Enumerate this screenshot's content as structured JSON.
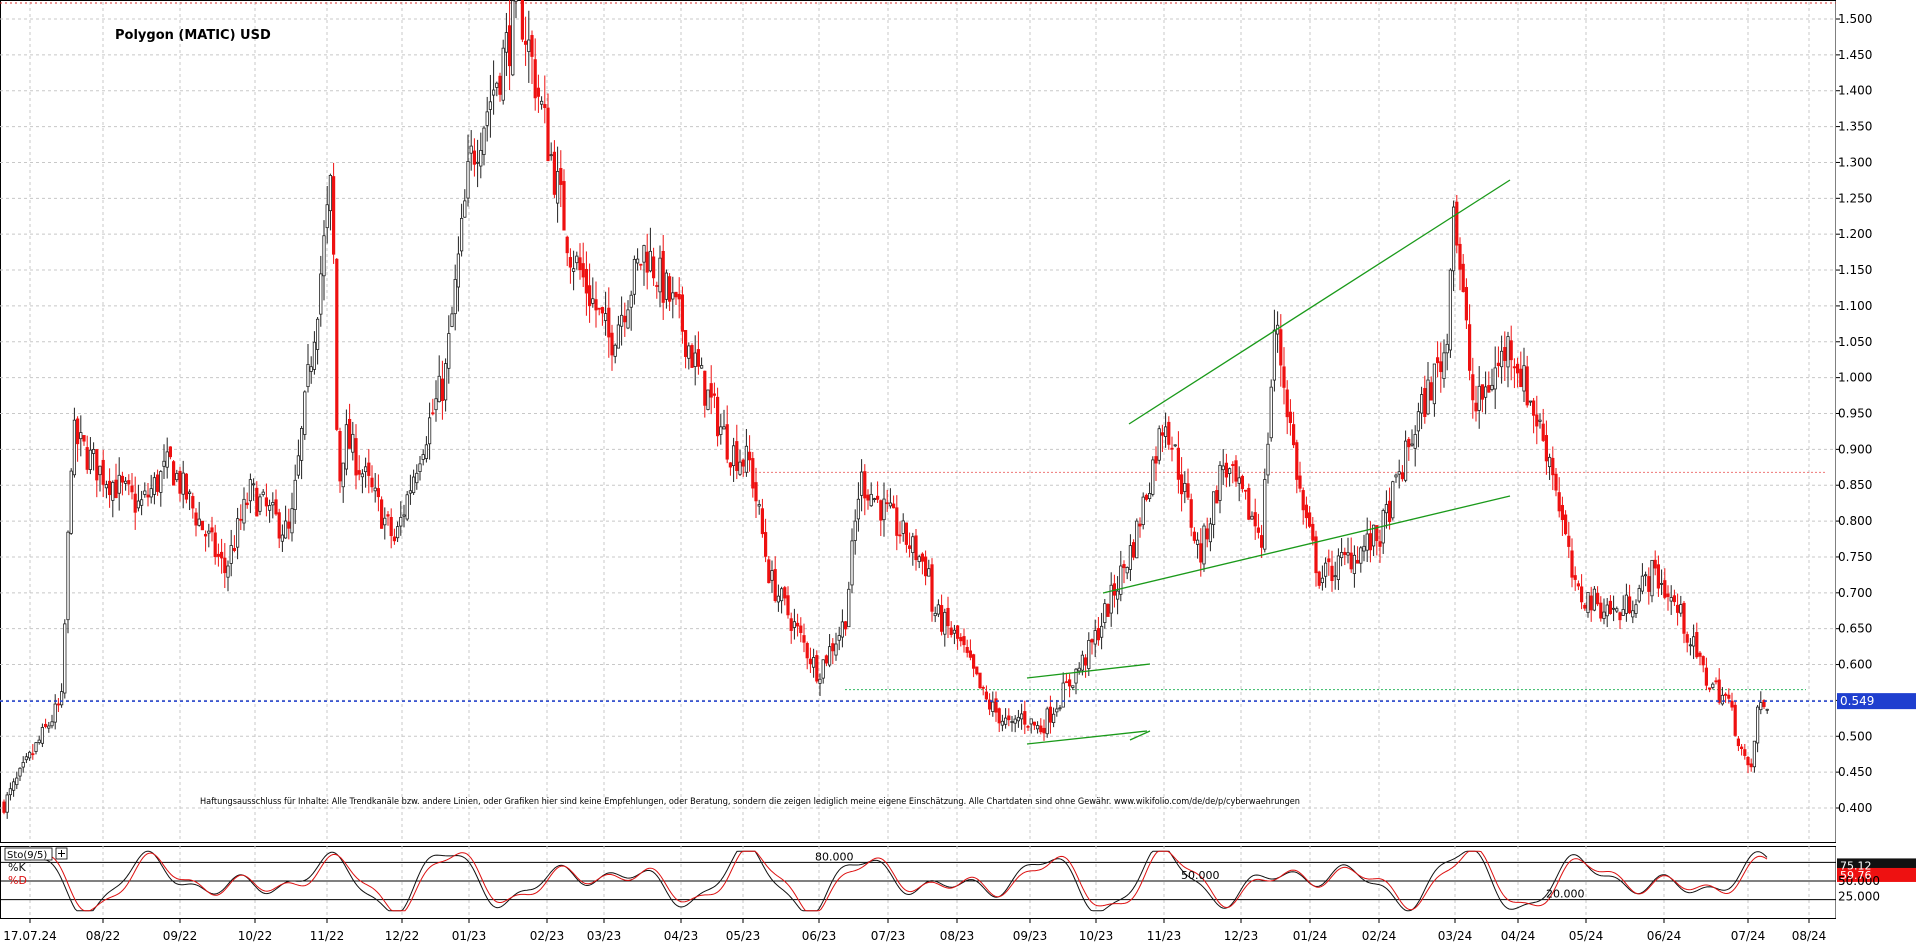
{
  "chart_data": [
    {
      "type": "candlestick",
      "title": "Polygon (MATIC) USD",
      "disclaimer": "Haftungsausschluss für Inhalte: Alle Trendkanäle bzw. andere Linien, oder Grafiken hier sind keine Empfehlungen, oder Beratung, sondern die zeigen lediglich meine eigene Einschätzung. Alle Chartdaten sind ohne Gewähr. www.wikifolio.com/de/de/p/cyberwaehrungen",
      "x_tick_labels": [
        "17.07.24",
        "08/22",
        "09/22",
        "10/22",
        "11/22",
        "12/22",
        "01/23",
        "02/23",
        "03/23",
        "04/23",
        "05/23",
        "06/23",
        "07/23",
        "08/23",
        "09/23",
        "10/23",
        "11/23",
        "12/23",
        "01/24",
        "02/24",
        "03/24",
        "04/24",
        "05/24",
        "06/24",
        "07/24",
        "08/24"
      ],
      "y_tick_labels": [
        "0.400",
        "0.450",
        "0.500",
        "0.550",
        "0.600",
        "0.650",
        "0.700",
        "0.750",
        "0.800",
        "0.850",
        "0.900",
        "0.950",
        "1.000",
        "1.050",
        "1.100",
        "1.150",
        "1.200",
        "1.250",
        "1.300",
        "1.350",
        "1.400",
        "1.450",
        "1.500"
      ],
      "ylim": [
        0.38,
        1.52
      ],
      "grid": true,
      "current_price": 0.549,
      "current_price_label": "0.549",
      "up_color": "#222222",
      "down_color": "#ee1111",
      "price_line_color": "#1f3fcf",
      "trendline_color": "#1a9a1a",
      "price_anchors": [
        {
          "x": "17.07.24",
          "y": 0.4
        },
        {
          "x": "early 08/22",
          "y": 0.55
        },
        {
          "x": "early 08/22",
          "y": 0.92
        },
        {
          "x": "08/22",
          "y": 0.87
        },
        {
          "x": "09/22",
          "y": 0.82
        },
        {
          "x": "09/22",
          "y": 0.88
        },
        {
          "x": "10/22",
          "y": 0.73
        },
        {
          "x": "10/22",
          "y": 0.84
        },
        {
          "x": "11/22",
          "y": 0.78
        },
        {
          "x": "11/22",
          "y": 1.28
        },
        {
          "x": "11/22",
          "y": 0.84
        },
        {
          "x": "12/22",
          "y": 0.92
        },
        {
          "x": "12/22",
          "y": 0.77
        },
        {
          "x": "01/23",
          "y": 0.9
        },
        {
          "x": "01/23",
          "y": 1.0
        },
        {
          "x": "02/23",
          "y": 1.3
        },
        {
          "x": "02/23",
          "y": 1.52
        },
        {
          "x": "03/23",
          "y": 1.18
        },
        {
          "x": "03/23",
          "y": 1.05
        },
        {
          "x": "04/23",
          "y": 1.18
        },
        {
          "x": "04/23",
          "y": 1.08
        },
        {
          "x": "05/23",
          "y": 1.0
        },
        {
          "x": "05/23",
          "y": 0.9
        },
        {
          "x": "06/23",
          "y": 0.88
        },
        {
          "x": "06/23",
          "y": 0.72
        },
        {
          "x": "06/23",
          "y": 0.59
        },
        {
          "x": "07/23",
          "y": 0.66
        },
        {
          "x": "07/23",
          "y": 0.86
        },
        {
          "x": "07/23",
          "y": 0.73
        },
        {
          "x": "08/23",
          "y": 0.68
        },
        {
          "x": "08/23",
          "y": 0.63
        },
        {
          "x": "09/23",
          "y": 0.55
        },
        {
          "x": "09/23",
          "y": 0.51
        },
        {
          "x": "10/23",
          "y": 0.53
        },
        {
          "x": "10/23",
          "y": 0.51
        },
        {
          "x": "11/23",
          "y": 0.62
        },
        {
          "x": "11/23",
          "y": 0.77
        },
        {
          "x": "11/23",
          "y": 0.95
        },
        {
          "x": "12/23",
          "y": 0.75
        },
        {
          "x": "12/23",
          "y": 0.88
        },
        {
          "x": "01/24",
          "y": 0.78
        },
        {
          "x": "01/24",
          "y": 1.08
        },
        {
          "x": "01/24",
          "y": 0.82
        },
        {
          "x": "02/24",
          "y": 0.72
        },
        {
          "x": "02/24",
          "y": 0.78
        },
        {
          "x": "03/24",
          "y": 0.95
        },
        {
          "x": "03/24",
          "y": 1.05
        },
        {
          "x": "03/24",
          "y": 1.27
        },
        {
          "x": "04/24",
          "y": 0.95
        },
        {
          "x": "04/24",
          "y": 1.05
        },
        {
          "x": "04/24",
          "y": 0.88
        },
        {
          "x": "05/24",
          "y": 0.7
        },
        {
          "x": "05/24",
          "y": 0.67
        },
        {
          "x": "06/24",
          "y": 0.73
        },
        {
          "x": "06/24",
          "y": 0.67
        },
        {
          "x": "06/24",
          "y": 0.58
        },
        {
          "x": "07/24",
          "y": 0.55
        },
        {
          "x": "07/24",
          "y": 0.44
        },
        {
          "x": "07/24",
          "y": 0.54
        }
      ]
    },
    {
      "type": "line",
      "indicator_label": "Sto(9/5)",
      "series": [
        {
          "name": "%K",
          "color": "#111111",
          "current_value": 75.12,
          "current_label": "75.12"
        },
        {
          "name": "%D",
          "color": "#dd1111",
          "current_value": 59.76,
          "current_label": "59.76"
        }
      ],
      "reference_levels": [
        80.0,
        50.0,
        20.0
      ],
      "level_labels": [
        "80.000",
        "50.000",
        "20.000"
      ],
      "y_tick_labels": [
        "50.000",
        "25.000"
      ],
      "ylim": [
        0,
        100
      ]
    }
  ]
}
